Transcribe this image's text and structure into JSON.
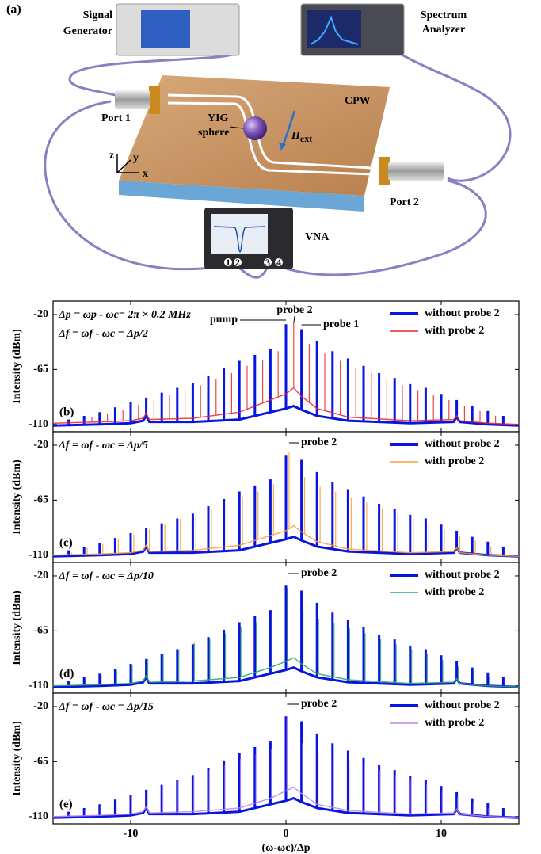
{
  "diagram": {
    "label": "(a)",
    "signal_generator": [
      "Signal",
      "Generator"
    ],
    "spectrum_analyzer": [
      "Spectrum",
      "Analyzer"
    ],
    "port1": "Port 1",
    "port2": "Port 2",
    "cpw": "CPW",
    "yig": [
      "YIG",
      "sphere"
    ],
    "field": {
      "symbol": "H",
      "subscript": "ext"
    },
    "axes": [
      "z",
      "y",
      "x"
    ],
    "vna": "VNA",
    "vna_ports": [
      "1",
      "2",
      "3",
      "4"
    ]
  },
  "chart_data": [
    {
      "type": "stem",
      "panel_label": "(b)",
      "formula": [
        "Δp = ωp - ωc= 2π × 0.2 MHz",
        "Δf = ωf - ωc = Δp/2"
      ],
      "annotations": [
        "pump",
        "probe 2",
        "probe 1"
      ],
      "ylabel": "Intensity (dBm)",
      "xlim": [
        -15,
        15
      ],
      "xticks": [
        -10,
        0,
        10
      ],
      "ylim": [
        -116,
        -9
      ],
      "yticks": [
        -110,
        -65,
        -20
      ],
      "legend": "upper right",
      "series": [
        {
          "name": "without probe 2",
          "color": "#0a14e0",
          "x": [
            -14,
            -13,
            -12,
            -11,
            -10,
            -9,
            -8,
            -7,
            -6,
            -5,
            -4,
            -3,
            -2,
            -1,
            0,
            1,
            2,
            3,
            4,
            5,
            6,
            7,
            8,
            9,
            10,
            11,
            12,
            13,
            14
          ],
          "values": [
            -106,
            -103,
            -100,
            -96,
            -92,
            -88,
            -84,
            -80,
            -76,
            -70,
            -64,
            -58,
            -53,
            -48,
            -28,
            -32,
            -42,
            -50,
            -56,
            -62,
            -68,
            -72,
            -77,
            -80,
            -85,
            -90,
            -95,
            -99,
            -103
          ],
          "floor": {
            "x": [
              -15,
              -12,
              -10,
              -9.2,
              -9,
              -8.8,
              -6,
              -3,
              -1,
              0,
              0.5,
              1,
              2,
              4,
              8,
              10.8,
              11,
              11.2,
              13,
              15
            ],
            "values": [
              -111,
              -110,
              -109,
              -107,
              -103,
              -108,
              -108,
              -106,
              -100,
              -97,
              -95,
              -98,
              -103,
              -107,
              -109,
              -108,
              -104,
              -108,
              -110,
              -111
            ]
          }
        },
        {
          "name": "with probe 2",
          "color": "#e8262a",
          "x": [
            -13.5,
            -12.5,
            -11.5,
            -10.5,
            -9.5,
            -8.5,
            -7.5,
            -6.5,
            -5.5,
            -4.5,
            -3.5,
            -2.5,
            -1.5,
            -0.5,
            0.5,
            1.5,
            2.5,
            3.5,
            4.5,
            5.5,
            6.5,
            7.5,
            8.5,
            9.5,
            10.5,
            11.5,
            12.5,
            13.5
          ],
          "values": [
            -108,
            -104,
            -101,
            -98,
            -94,
            -90,
            -86,
            -82,
            -78,
            -73,
            -68,
            -62,
            -57,
            -50,
            -27,
            -44,
            -52,
            -58,
            -64,
            -68,
            -73,
            -78,
            -82,
            -86,
            -90,
            -95,
            -99,
            -103
          ],
          "floor": {
            "x": [
              -15,
              -12,
              -10,
              -9.2,
              -9,
              -8.8,
              -6,
              -3,
              -1,
              0,
              0.5,
              1,
              2,
              4,
              8,
              10.8,
              11,
              11.2,
              13,
              15
            ],
            "values": [
              -109,
              -108,
              -107,
              -105,
              -101,
              -106,
              -105,
              -100,
              -90,
              -85,
              -80,
              -87,
              -97,
              -104,
              -107,
              -106,
              -103,
              -107,
              -109,
              -110
            ]
          }
        }
      ]
    },
    {
      "type": "stem",
      "panel_label": "(c)",
      "formula": [
        "Δf = ωf - ωc = Δp/5"
      ],
      "annotations": [
        "probe 2"
      ],
      "ylabel": "Intensity (dBm)",
      "xlim": [
        -15,
        15
      ],
      "xticks": [
        -10,
        0,
        10
      ],
      "ylim": [
        -116,
        -9
      ],
      "yticks": [
        -110,
        -65,
        -20
      ],
      "legend": "upper right",
      "series": [
        {
          "name": "without probe 2",
          "color": "#0a14e0",
          "x": [
            -14,
            -13,
            -12,
            -11,
            -10,
            -9,
            -8,
            -7,
            -6,
            -5,
            -4,
            -3,
            -2,
            -1,
            0,
            1,
            2,
            3,
            4,
            5,
            6,
            7,
            8,
            9,
            10,
            11,
            12,
            13,
            14
          ],
          "values": [
            -106,
            -103,
            -100,
            -96,
            -92,
            -88,
            -84,
            -80,
            -76,
            -70,
            -64,
            -58,
            -53,
            -48,
            -28,
            -32,
            -42,
            -50,
            -56,
            -62,
            -68,
            -72,
            -77,
            -80,
            -85,
            -90,
            -95,
            -99,
            -103
          ],
          "floor": {
            "x": [
              -15,
              -12,
              -10,
              -9.2,
              -9,
              -8.8,
              -6,
              -3,
              -1,
              0,
              0.5,
              1,
              2,
              4,
              8,
              10.8,
              11,
              11.2,
              13,
              15
            ],
            "values": [
              -111,
              -110,
              -109,
              -107,
              -103,
              -108,
              -108,
              -106,
              -100,
              -97,
              -95,
              -98,
              -103,
              -107,
              -109,
              -108,
              -104,
              -108,
              -110,
              -111
            ]
          }
        },
        {
          "name": "with probe 2",
          "color": "#f5a030",
          "x": [
            -13.8,
            -12.8,
            -11.8,
            -10.8,
            -9.8,
            -8.8,
            -7.8,
            -6.8,
            -5.8,
            -4.8,
            -3.8,
            -2.8,
            -1.8,
            -0.8,
            0.2,
            1.2,
            2.2,
            3.2,
            4.2,
            5.2,
            6.2,
            7.2,
            8.2,
            9.2,
            10.2,
            11.2,
            12.2,
            13.2
          ],
          "values": [
            -108,
            -104,
            -101,
            -97,
            -93,
            -89,
            -85,
            -80,
            -76,
            -72,
            -67,
            -62,
            -58,
            -52,
            -26,
            -46,
            -54,
            -58,
            -63,
            -67,
            -72,
            -76,
            -80,
            -84,
            -89,
            -94,
            -98,
            -103
          ],
          "floor": {
            "x": [
              -15,
              -12,
              -10,
              -9.2,
              -9,
              -8.8,
              -6,
              -3,
              -1,
              0,
              0.5,
              1,
              2,
              4,
              8,
              10.8,
              11,
              11.2,
              13,
              15
            ],
            "values": [
              -110,
              -109,
              -108,
              -106,
              -102,
              -107,
              -106,
              -102,
              -94,
              -90,
              -86,
              -91,
              -99,
              -105,
              -108,
              -107,
              -104,
              -108,
              -110,
              -111
            ]
          }
        }
      ]
    },
    {
      "type": "stem",
      "panel_label": "(d)",
      "formula": [
        "Δf = ωf - ωc = Δp/10"
      ],
      "annotations": [
        "probe 2"
      ],
      "ylabel": "Intensity (dBm)",
      "xlim": [
        -15,
        15
      ],
      "xticks": [
        -10,
        0,
        10
      ],
      "ylim": [
        -116,
        -9
      ],
      "yticks": [
        -110,
        -65,
        -20
      ],
      "legend": "upper right",
      "series": [
        {
          "name": "without probe 2",
          "color": "#0a14e0",
          "x": [
            -14,
            -13,
            -12,
            -11,
            -10,
            -9,
            -8,
            -7,
            -6,
            -5,
            -4,
            -3,
            -2,
            -1,
            0,
            1,
            2,
            3,
            4,
            5,
            6,
            7,
            8,
            9,
            10,
            11,
            12,
            13,
            14
          ],
          "values": [
            -106,
            -103,
            -100,
            -96,
            -92,
            -88,
            -84,
            -80,
            -76,
            -70,
            -64,
            -58,
            -53,
            -48,
            -28,
            -32,
            -42,
            -50,
            -56,
            -62,
            -68,
            -72,
            -77,
            -80,
            -85,
            -90,
            -95,
            -99,
            -103
          ],
          "floor": {
            "x": [
              -15,
              -12,
              -10,
              -9.2,
              -9,
              -8.8,
              -6,
              -3,
              -1,
              0,
              0.5,
              1,
              2,
              4,
              8,
              10.8,
              11,
              11.2,
              13,
              15
            ],
            "values": [
              -111,
              -110,
              -109,
              -107,
              -103,
              -108,
              -108,
              -106,
              -100,
              -97,
              -95,
              -98,
              -103,
              -107,
              -109,
              -108,
              -104,
              -108,
              -110,
              -111
            ]
          }
        },
        {
          "name": "with probe 2",
          "color": "#2aa86a",
          "x": [
            -13.9,
            -12.9,
            -11.9,
            -10.9,
            -9.9,
            -8.9,
            -7.9,
            -6.9,
            -5.9,
            -4.9,
            -3.9,
            -2.9,
            -1.9,
            -0.9,
            0.1,
            1.1,
            2.1,
            3.1,
            4.1,
            5.1,
            6.1,
            7.1,
            8.1,
            9.1,
            10.1,
            11.1,
            12.1,
            13.1
          ],
          "values": [
            -108,
            -104,
            -101,
            -97,
            -93,
            -88,
            -84,
            -80,
            -75,
            -71,
            -67,
            -62,
            -58,
            -54,
            -30,
            -48,
            -55,
            -59,
            -63,
            -67,
            -72,
            -76,
            -80,
            -84,
            -89,
            -94,
            -98,
            -103
          ],
          "floor": {
            "x": [
              -15,
              -12,
              -10,
              -9.2,
              -9,
              -8.8,
              -6,
              -3,
              -1,
              0,
              0.5,
              1,
              2,
              4,
              8,
              10.8,
              11,
              11.2,
              13,
              15
            ],
            "values": [
              -110,
              -109,
              -108,
              -106,
              -102,
              -107,
              -106,
              -103,
              -95,
              -90,
              -87,
              -92,
              -100,
              -105,
              -108,
              -107,
              -104,
              -108,
              -110,
              -111
            ]
          }
        }
      ]
    },
    {
      "type": "stem",
      "panel_label": "(e)",
      "formula": [
        "Δf = ωf - ωc = Δp/15"
      ],
      "annotations": [
        "probe 2"
      ],
      "ylabel": "Intensity (dBm)",
      "xlabel": "(ω-ωc)/Δp",
      "xlim": [
        -15,
        15
      ],
      "xticks": [
        -10,
        0,
        10
      ],
      "ylim": [
        -116,
        -9
      ],
      "yticks": [
        -110,
        -65,
        -20
      ],
      "legend": "upper right",
      "series": [
        {
          "name": "without probe 2",
          "color": "#0a14e0",
          "x": [
            -14,
            -13,
            -12,
            -11,
            -10,
            -9,
            -8,
            -7,
            -6,
            -5,
            -4,
            -3,
            -2,
            -1,
            0,
            1,
            2,
            3,
            4,
            5,
            6,
            7,
            8,
            9,
            10,
            11,
            12,
            13,
            14
          ],
          "values": [
            -106,
            -103,
            -100,
            -96,
            -92,
            -88,
            -84,
            -80,
            -76,
            -70,
            -64,
            -58,
            -53,
            -48,
            -28,
            -32,
            -42,
            -50,
            -56,
            -62,
            -68,
            -72,
            -77,
            -80,
            -85,
            -90,
            -95,
            -99,
            -103
          ],
          "floor": {
            "x": [
              -15,
              -12,
              -10,
              -9.2,
              -9,
              -8.8,
              -6,
              -3,
              -1,
              0,
              0.5,
              1,
              2,
              4,
              8,
              10.8,
              11,
              11.2,
              13,
              15
            ],
            "values": [
              -111,
              -110,
              -109,
              -107,
              -103,
              -108,
              -108,
              -106,
              -100,
              -97,
              -95,
              -98,
              -103,
              -107,
              -109,
              -108,
              -104,
              -108,
              -110,
              -111
            ]
          }
        },
        {
          "name": "with probe 2",
          "color": "#b88ae8",
          "x": [
            -13.93,
            -12.93,
            -11.93,
            -10.93,
            -9.93,
            -8.93,
            -7.93,
            -6.93,
            -5.93,
            -4.93,
            -3.93,
            -2.93,
            -1.93,
            -0.93,
            0.07,
            1.07,
            2.07,
            3.07,
            4.07,
            5.07,
            6.07,
            7.07,
            8.07,
            9.07,
            10.07,
            11.07,
            12.07,
            13.07
          ],
          "values": [
            -108,
            -105,
            -101,
            -97,
            -93,
            -88,
            -84,
            -80,
            -76,
            -72,
            -68,
            -63,
            -59,
            -55,
            -29,
            -50,
            -56,
            -60,
            -64,
            -68,
            -72,
            -76,
            -80,
            -84,
            -89,
            -94,
            -98,
            -103
          ],
          "floor": {
            "x": [
              -15,
              -12,
              -10,
              -9.2,
              -9,
              -8.8,
              -6,
              -3,
              -1,
              0,
              0.5,
              1,
              2,
              4,
              8,
              10.8,
              11,
              11.2,
              13,
              15
            ],
            "values": [
              -110,
              -109,
              -108,
              -106,
              -102,
              -107,
              -106,
              -103,
              -95,
              -89,
              -86,
              -91,
              -100,
              -105,
              -108,
              -107,
              -104,
              -108,
              -110,
              -111
            ]
          }
        }
      ]
    }
  ]
}
